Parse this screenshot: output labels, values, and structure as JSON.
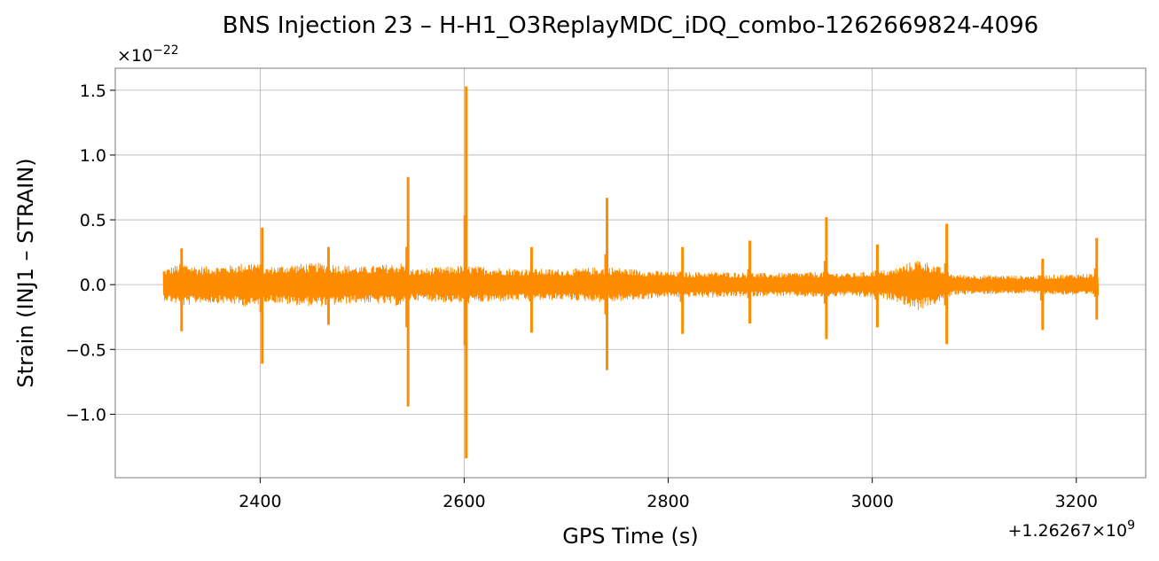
{
  "chart_data": {
    "type": "line",
    "title": "BNS Injection 23 – H-H1_O3ReplayMDC_iDQ_combo-1262669824-4096",
    "xlabel": "GPS Time (s)",
    "ylabel": "Strain (INJ1 – STRAIN)",
    "x_offset_text": "+1.26267×10",
    "x_offset_exp": "9",
    "y_scale_text": "×10",
    "y_scale_exp": "−22",
    "xlim": [
      2258,
      3268
    ],
    "ylim": [
      -1.49,
      1.67
    ],
    "x_ticks": [
      2400,
      2600,
      2800,
      3000,
      3200
    ],
    "x_tick_labels": [
      "2400",
      "2600",
      "2800",
      "3000",
      "3200"
    ],
    "y_ticks": [
      -1.0,
      -0.5,
      0.0,
      0.5,
      1.0,
      1.5
    ],
    "y_tick_labels": [
      "−1.0",
      "−0.5",
      "0.0",
      "0.5",
      "1.0",
      "1.5"
    ],
    "grid": true,
    "color": "#ff8c00",
    "series": [
      {
        "x_start": 2305,
        "x_end": 3222,
        "noise_envelope": [
          [
            2305,
            0.12
          ],
          [
            2325,
            0.17
          ],
          [
            2340,
            0.14
          ],
          [
            2370,
            0.15
          ],
          [
            2395,
            0.18
          ],
          [
            2402,
            0.13
          ],
          [
            2430,
            0.16
          ],
          [
            2460,
            0.17
          ],
          [
            2500,
            0.14
          ],
          [
            2540,
            0.17
          ],
          [
            2548,
            0.12
          ],
          [
            2600,
            0.15
          ],
          [
            2640,
            0.13
          ],
          [
            2700,
            0.12
          ],
          [
            2740,
            0.14
          ],
          [
            2800,
            0.1
          ],
          [
            2850,
            0.1
          ],
          [
            2900,
            0.09
          ],
          [
            2950,
            0.1
          ],
          [
            2980,
            0.09
          ],
          [
            3020,
            0.12
          ],
          [
            3045,
            0.2
          ],
          [
            3060,
            0.16
          ],
          [
            3080,
            0.08
          ],
          [
            3150,
            0.07
          ],
          [
            3222,
            0.09
          ]
        ],
        "spikes": [
          {
            "x": 2323,
            "top": 0.28,
            "bottom": -0.36
          },
          {
            "x": 2402,
            "top": 0.44,
            "bottom": -0.61
          },
          {
            "x": 2467,
            "top": 0.29,
            "bottom": -0.31
          },
          {
            "x": 2545,
            "top": 0.83,
            "bottom": -0.94
          },
          {
            "x": 2602,
            "top": 1.53,
            "bottom": -1.34
          },
          {
            "x": 2666,
            "top": 0.29,
            "bottom": -0.37
          },
          {
            "x": 2740,
            "top": 0.67,
            "bottom": -0.66
          },
          {
            "x": 2814,
            "top": 0.29,
            "bottom": -0.38
          },
          {
            "x": 2880,
            "top": 0.34,
            "bottom": -0.3
          },
          {
            "x": 2955,
            "top": 0.52,
            "bottom": -0.42
          },
          {
            "x": 3005,
            "top": 0.31,
            "bottom": -0.33
          },
          {
            "x": 3073,
            "top": 0.47,
            "bottom": -0.46
          },
          {
            "x": 3167,
            "top": 0.2,
            "bottom": -0.35
          },
          {
            "x": 3220,
            "top": 0.36,
            "bottom": -0.27
          }
        ]
      }
    ]
  }
}
